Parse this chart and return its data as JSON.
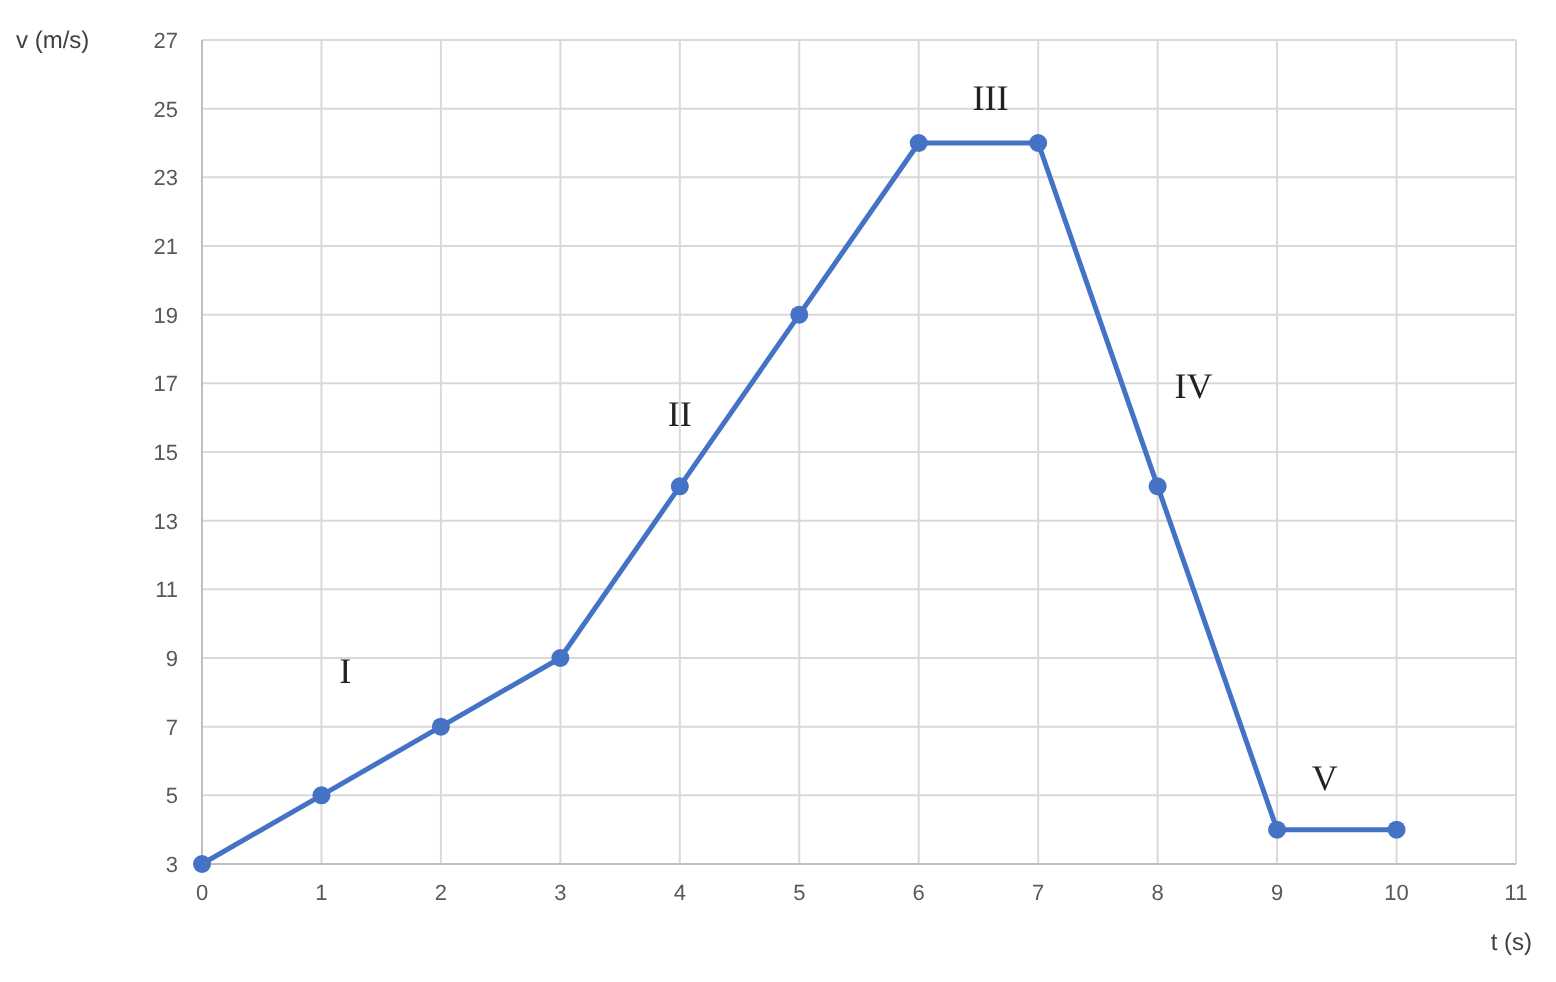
{
  "chart_data": {
    "type": "line",
    "xlabel": "t (s)",
    "ylabel": "v (m/s)",
    "x": [
      0,
      1,
      2,
      3,
      4,
      5,
      6,
      7,
      8,
      9,
      10
    ],
    "series": [
      {
        "color": "#4472c4",
        "values": [
          3,
          5,
          7,
          9,
          14,
          19,
          24,
          24,
          14,
          4,
          4
        ]
      }
    ],
    "xlim": [
      0,
      11
    ],
    "xticks": [
      0,
      1,
      2,
      3,
      4,
      5,
      6,
      7,
      8,
      9,
      10,
      11
    ],
    "ylim": [
      3,
      27
    ],
    "yticks": [
      3,
      5,
      7,
      9,
      11,
      13,
      15,
      17,
      19,
      21,
      23,
      25,
      27
    ],
    "grid": true,
    "marker": "circle",
    "line_style": "solid",
    "annotations": [
      "I",
      "II",
      "III",
      "IV",
      "V"
    ]
  }
}
